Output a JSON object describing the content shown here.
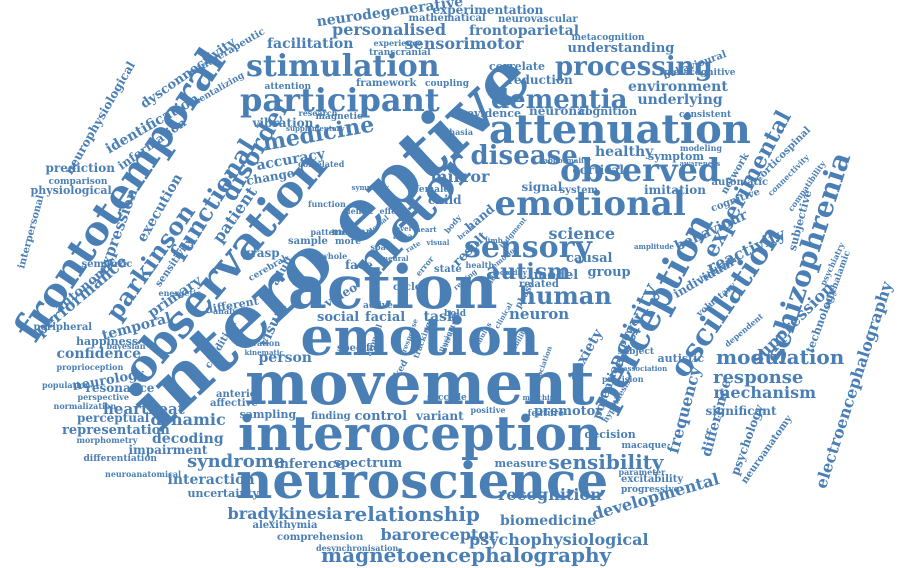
{
  "color": "#4a7fb5",
  "words": [
    {
      "id": "movement",
      "text": "movement"
    },
    {
      "id": "intero-eptive",
      "text": "intero eptive"
    },
    {
      "id": "emotion",
      "text": "emotion"
    },
    {
      "id": "action",
      "text": "action"
    },
    {
      "id": "neuroscience",
      "text": "neuroscience"
    },
    {
      "id": "interoception",
      "text": "interoception"
    },
    {
      "id": "motor",
      "text": "motor"
    },
    {
      "id": "observation",
      "text": "observation"
    },
    {
      "id": "attenuation",
      "text": "attenuation"
    },
    {
      "id": "frontotemporal",
      "text": "frontotemporal"
    },
    {
      "id": "perception",
      "text": "perception"
    },
    {
      "id": "emotional",
      "text": "emotional"
    },
    {
      "id": "sensory",
      "text": "sensory"
    },
    {
      "id": "observed",
      "text": "observed"
    },
    {
      "id": "participant",
      "text": "participant"
    },
    {
      "id": "stimulation",
      "text": "stimulation"
    },
    {
      "id": "oscillation",
      "text": "oscillation"
    },
    {
      "id": "schizophrenia",
      "text": "schizophrenia"
    },
    {
      "id": "dementia",
      "text": "dementia"
    },
    {
      "id": "disease",
      "text": "disease"
    },
    {
      "id": "processing",
      "text": "processing"
    },
    {
      "id": "disorder",
      "text": "disorder"
    },
    {
      "id": "functional",
      "text": "functional"
    },
    {
      "id": "parkinson",
      "text": "parkinson"
    },
    {
      "id": "human",
      "text": "human"
    },
    {
      "id": "autism",
      "text": "autism"
    },
    {
      "id": "medicine",
      "text": "medicine"
    },
    {
      "id": "experimental",
      "text": "experimental"
    },
    {
      "id": "activity",
      "text": "activity"
    },
    {
      "id": "magnetoencephalography",
      "text": "magnetoencephalography"
    },
    {
      "id": "relationship",
      "text": "relationship"
    },
    {
      "id": "sensibility",
      "text": "sensibility"
    },
    {
      "id": "modulation",
      "text": "modulation"
    },
    {
      "id": "response",
      "text": "response"
    },
    {
      "id": "syndrome",
      "text": "syndrome"
    },
    {
      "id": "developmental",
      "text": "developmental"
    },
    {
      "id": "bradykinesia",
      "text": "bradykinesia"
    },
    {
      "id": "recognition",
      "text": "recognition"
    },
    {
      "id": "electroencephalography",
      "text": "electroencephalography"
    },
    {
      "id": "sensorimotor",
      "text": "sensorimotor"
    },
    {
      "id": "personalised",
      "text": "personalised"
    },
    {
      "id": "neurodegenerative",
      "text": "neurodegenerative"
    },
    {
      "id": "frontoparietal",
      "text": "frontoparietal"
    },
    {
      "id": "experimentation",
      "text": "experimentation"
    },
    {
      "id": "mathematical",
      "text": "mathematical"
    },
    {
      "id": "neurovascular",
      "text": "neurovascular"
    },
    {
      "id": "metacognition",
      "text": "metacognition"
    },
    {
      "id": "facilitation",
      "text": "facilitation"
    },
    {
      "id": "understanding",
      "text": "understanding"
    },
    {
      "id": "environment",
      "text": "environment"
    },
    {
      "id": "behavioural",
      "text": "behavioural"
    },
    {
      "id": "metacognitive",
      "text": "metacognitive"
    },
    {
      "id": "underlying",
      "text": "underlying"
    },
    {
      "id": "neuronal",
      "text": "neuronal"
    },
    {
      "id": "cognition",
      "text": "cognition"
    },
    {
      "id": "reduction",
      "text": "reduction"
    },
    {
      "id": "correlate",
      "text": "correlate"
    },
    {
      "id": "coupling",
      "text": "coupling"
    },
    {
      "id": "framework",
      "text": "framework"
    },
    {
      "id": "transcranial",
      "text": "transcranial"
    },
    {
      "id": "experience",
      "text": "experience"
    },
    {
      "id": "evidence",
      "text": "evidence"
    },
    {
      "id": "consistent",
      "text": "consistent"
    },
    {
      "id": "healthy",
      "text": "healthy"
    },
    {
      "id": "symptom",
      "text": "symptom"
    },
    {
      "id": "cortical",
      "text": "cortical"
    },
    {
      "id": "imitation",
      "text": "imitation"
    },
    {
      "id": "signal",
      "text": "signal"
    },
    {
      "id": "system",
      "text": "system"
    },
    {
      "id": "mirror",
      "text": "mirror"
    },
    {
      "id": "science",
      "text": "science"
    },
    {
      "id": "behaviour",
      "text": "behaviour"
    },
    {
      "id": "reactivity",
      "text": "reactivity"
    },
    {
      "id": "cognitive",
      "text": "cognitive"
    },
    {
      "id": "automatic",
      "text": "automatic"
    },
    {
      "id": "corticospinal",
      "text": "corticospinal"
    },
    {
      "id": "subjective",
      "text": "subjective"
    },
    {
      "id": "causal",
      "text": "causal"
    },
    {
      "id": "group",
      "text": "group"
    },
    {
      "id": "model",
      "text": "model"
    },
    {
      "id": "individual",
      "text": "individual"
    },
    {
      "id": "anxiety",
      "text": "anxiety"
    },
    {
      "id": "neuron",
      "text": "neuron"
    },
    {
      "id": "potential",
      "text": "potential"
    },
    {
      "id": "power",
      "text": "power"
    },
    {
      "id": "suppression",
      "text": "suppression"
    },
    {
      "id": "technology",
      "text": "technology"
    },
    {
      "id": "subthalamic",
      "text": "subthalamic"
    },
    {
      "id": "mechanism",
      "text": "mechanism"
    },
    {
      "id": "significant",
      "text": "significant"
    },
    {
      "id": "frequency",
      "text": "frequency"
    },
    {
      "id": "difference",
      "text": "difference"
    },
    {
      "id": "psychology",
      "text": "psychology"
    },
    {
      "id": "neuroanatomy",
      "text": "neuroanatomy"
    },
    {
      "id": "autistic",
      "text": "autistic"
    },
    {
      "id": "subject",
      "text": "subject"
    },
    {
      "id": "premotor",
      "text": "premotor"
    },
    {
      "id": "decision",
      "text": "decision"
    },
    {
      "id": "macaque",
      "text": "macaque"
    },
    {
      "id": "excitability",
      "text": "excitability"
    },
    {
      "id": "progressive",
      "text": "progressive"
    },
    {
      "id": "parameter",
      "text": "parameter"
    },
    {
      "id": "feature",
      "text": "feature"
    },
    {
      "id": "measure",
      "text": "measure"
    },
    {
      "id": "spectrum",
      "text": "spectrum"
    },
    {
      "id": "inference",
      "text": "inference"
    },
    {
      "id": "interaction",
      "text": "interaction"
    },
    {
      "id": "uncertainty",
      "text": "uncertainty"
    },
    {
      "id": "decoding",
      "text": "decoding"
    },
    {
      "id": "dynamic",
      "text": "dynamic"
    },
    {
      "id": "heartbeat",
      "text": "heartbeat"
    },
    {
      "id": "representation",
      "text": "representation"
    },
    {
      "id": "impairment",
      "text": "impairment"
    },
    {
      "id": "differentiation",
      "text": "differentiation"
    },
    {
      "id": "neuroanatomical",
      "text": "neuroanatomical"
    },
    {
      "id": "morphometry",
      "text": "morphometry"
    },
    {
      "id": "sampling",
      "text": "sampling"
    },
    {
      "id": "finding",
      "text": "finding"
    },
    {
      "id": "control",
      "text": "control"
    },
    {
      "id": "variant",
      "text": "variant"
    },
    {
      "id": "confidence",
      "text": "confidence"
    },
    {
      "id": "neurology",
      "text": "neurology"
    },
    {
      "id": "resonance",
      "text": "resonance"
    },
    {
      "id": "person",
      "text": "person"
    },
    {
      "id": "visual",
      "text": "visual"
    },
    {
      "id": "social",
      "text": "social"
    },
    {
      "id": "facial",
      "text": "facial"
    },
    {
      "id": "task",
      "text": "task"
    },
    {
      "id": "face",
      "text": "face"
    },
    {
      "id": "result",
      "text": "result"
    },
    {
      "id": "state",
      "text": "state"
    },
    {
      "id": "temporal",
      "text": "temporal"
    },
    {
      "id": "primary",
      "text": "primary"
    },
    {
      "id": "performance",
      "text": "performance"
    },
    {
      "id": "autonomic",
      "text": "autonomic"
    },
    {
      "id": "expression",
      "text": "expression"
    },
    {
      "id": "execution",
      "text": "execution"
    },
    {
      "id": "patient",
      "text": "patient"
    },
    {
      "id": "accuracy",
      "text": "accuracy"
    },
    {
      "id": "change",
      "text": "change"
    },
    {
      "id": "identification",
      "text": "identification"
    },
    {
      "id": "information",
      "text": "information"
    },
    {
      "id": "dysconnectivity",
      "text": "dysconnectivity"
    },
    {
      "id": "neurophysiological",
      "text": "neurophysiological"
    },
    {
      "id": "nontherapeutic",
      "text": "nontherapeutic"
    },
    {
      "id": "mentalizing",
      "text": "mentalizing"
    },
    {
      "id": "prediction",
      "text": "prediction"
    },
    {
      "id": "comparison",
      "text": "comparison"
    },
    {
      "id": "physiological",
      "text": "physiological"
    },
    {
      "id": "interpersonal",
      "text": "interpersonal"
    },
    {
      "id": "semantic",
      "text": "semantic"
    },
    {
      "id": "sensitivity",
      "text": "sensitivity"
    },
    {
      "id": "happiness",
      "text": "happiness"
    },
    {
      "id": "bayesian",
      "text": "bayesian"
    },
    {
      "id": "perceptual",
      "text": "perceptual"
    },
    {
      "id": "peripheral",
      "text": "peripheral"
    },
    {
      "id": "proprioception",
      "text": "proprioception"
    },
    {
      "id": "population",
      "text": "population"
    },
    {
      "id": "perspective",
      "text": "perspective"
    },
    {
      "id": "normalization",
      "text": "normalization"
    },
    {
      "id": "affective",
      "text": "affective"
    },
    {
      "id": "anterior",
      "text": "anterior"
    },
    {
      "id": "grasp",
      "text": "grasp"
    },
    {
      "id": "sample",
      "text": "sample"
    },
    {
      "id": "cerebral",
      "text": "cerebral"
    },
    {
      "id": "adult",
      "text": "adult"
    },
    {
      "id": "different",
      "text": "different"
    },
    {
      "id": "energetic",
      "text": "energetic"
    },
    {
      "id": "analysis",
      "text": "analysis"
    },
    {
      "id": "condition",
      "text": "condition"
    },
    {
      "id": "vibration",
      "text": "vibration"
    },
    {
      "id": "attention",
      "text": "attention"
    },
    {
      "id": "research",
      "text": "research"
    },
    {
      "id": "magnetic",
      "text": "magnetic"
    },
    {
      "id": "aphasia",
      "text": "aphasia"
    },
    {
      "id": "correlated",
      "text": "correlated"
    },
    {
      "id": "female",
      "text": "female"
    },
    {
      "id": "child",
      "text": "child"
    },
    {
      "id": "hand",
      "text": "hand"
    },
    {
      "id": "video",
      "text": "video"
    },
    {
      "id": "median",
      "text": "median"
    },
    {
      "id": "cycle",
      "text": "cycle"
    },
    {
      "id": "related",
      "text": "related"
    },
    {
      "id": "bold",
      "text": "bold"
    },
    {
      "id": "active",
      "text": "active"
    },
    {
      "id": "saccade",
      "text": "saccade"
    },
    {
      "id": "alexithymia",
      "text": "alexithymia"
    },
    {
      "id": "comprehension",
      "text": "comprehension"
    },
    {
      "id": "baroreceptor",
      "text": "baroreceptor"
    },
    {
      "id": "psychophysiological",
      "text": "psychophysiological"
    },
    {
      "id": "desynchronisation",
      "text": "desynchronisation"
    },
    {
      "id": "biomedicine",
      "text": "biomedicine"
    },
    {
      "id": "network",
      "text": "network"
    },
    {
      "id": "voluntary",
      "text": "voluntary"
    },
    {
      "id": "dependent",
      "text": "dependent"
    },
    {
      "id": "inhibition",
      "text": "inhibition"
    },
    {
      "id": "psychiatry",
      "text": "psychiatry"
    },
    {
      "id": "connectivity",
      "text": "connectivity"
    },
    {
      "id": "compatibility",
      "text": "compatibility"
    },
    {
      "id": "modeling",
      "text": "modeling"
    },
    {
      "id": "awareness",
      "text": "awareness"
    },
    {
      "id": "precision",
      "text": "precision"
    },
    {
      "id": "association",
      "text": "association"
    },
    {
      "id": "positive",
      "text": "positive"
    },
    {
      "id": "matching",
      "text": "matching"
    },
    {
      "id": "hypothesis",
      "text": "hypothesis"
    },
    {
      "id": "amplitude",
      "text": "amplitude"
    },
    {
      "id": "pattern",
      "text": "pattern"
    },
    {
      "id": "area",
      "text": "area"
    },
    {
      "id": "more",
      "text": "more"
    },
    {
      "id": "whole",
      "text": "whole"
    },
    {
      "id": "space",
      "text": "space"
    },
    {
      "id": "phase",
      "text": "phase"
    },
    {
      "id": "health",
      "text": "health"
    },
    {
      "id": "effect",
      "text": "effect"
    },
    {
      "id": "deficit",
      "text": "deficit"
    },
    {
      "id": "function",
      "text": "function"
    },
    {
      "id": "sympathy",
      "text": "sympathy"
    },
    {
      "id": "evoked",
      "text": "evoked"
    },
    {
      "id": "specific",
      "text": "specific"
    },
    {
      "id": "activation",
      "text": "activation"
    },
    {
      "id": "kinematic",
      "text": "kinematic"
    },
    {
      "id": "supplementary",
      "text": "supplementary"
    },
    {
      "id": "dissociation",
      "text": "dissociation"
    },
    {
      "id": "clinical",
      "text": "clinical"
    },
    {
      "id": "stimulus",
      "text": "stimulus"
    },
    {
      "id": "structure",
      "text": "structure"
    },
    {
      "id": "arousal",
      "text": "arousal"
    },
    {
      "id": "tracking",
      "text": "tracking"
    },
    {
      "id": "illusion",
      "text": "illusion"
    },
    {
      "id": "response-small",
      "text": "response"
    },
    {
      "id": "error",
      "text": "error"
    },
    {
      "id": "visual-small",
      "text": "visual"
    },
    {
      "id": "judgment",
      "text": "judgment"
    },
    {
      "id": "limb",
      "text": "limb"
    },
    {
      "id": "ability",
      "text": "ability"
    },
    {
      "id": "neural",
      "text": "neural"
    },
    {
      "id": "dorsal",
      "text": "dorsal"
    },
    {
      "id": "level",
      "text": "level"
    },
    {
      "id": "rate",
      "text": "rate"
    },
    {
      "id": "heart",
      "text": "heart"
    },
    {
      "id": "body",
      "text": "body"
    },
    {
      "id": "brain",
      "text": "brain"
    },
    {
      "id": "emotion-small",
      "text": "emotion"
    },
    {
      "id": "loop",
      "text": "loop"
    },
    {
      "id": "study",
      "text": "study"
    },
    {
      "id": "resting",
      "text": "resting"
    },
    {
      "id": "bodily",
      "text": "bodily"
    },
    {
      "id": "abnormality",
      "text": "abnormality"
    }
  ]
}
